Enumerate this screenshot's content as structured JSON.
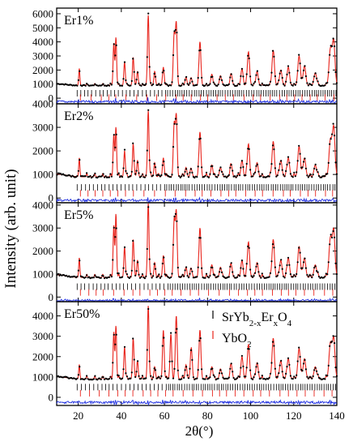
{
  "figure": {
    "ylabel": "Intensity (arb. unit)",
    "xlabel": "2θ(°)"
  },
  "legend": {
    "phase1_base": "SrYb",
    "phase1_sub1": "2-x",
    "phase1_mid": "Er",
    "phase1_sub2": "x",
    "phase1_o": "O",
    "phase1_sub3": "4",
    "phase2_base": "YbO",
    "phase2_sub": "2"
  },
  "colors": {
    "observed": "#000000",
    "calculated": "#e8241c",
    "difference": "#1f2fe0",
    "bragg_phase1": "#000000",
    "bragg_phase2": "#e8241c",
    "frame": "#000000"
  },
  "chart_data": [
    {
      "type": "line",
      "panel_label": "Er1%",
      "xlim": [
        10,
        140
      ],
      "ylim": [
        -400,
        6400
      ],
      "yticks": [
        0,
        1000,
        2000,
        3000,
        4000,
        5000,
        6000
      ],
      "xticks": [
        20,
        40,
        60,
        80,
        100,
        120,
        140
      ],
      "background": 900,
      "bragg_phase1_y": 350,
      "bragg_phase2_y": 40,
      "difference_offset": -250,
      "series": [
        {
          "role": "observed",
          "style": "dots"
        },
        {
          "role": "calculated",
          "style": "line"
        },
        {
          "role": "difference",
          "style": "line"
        }
      ],
      "peaks": [
        [
          20.5,
          2100
        ],
        [
          36.5,
          3900
        ],
        [
          37.5,
          4300
        ],
        [
          41.5,
          2600
        ],
        [
          45.5,
          2900
        ],
        [
          47.5,
          1900
        ],
        [
          52.5,
          5900
        ],
        [
          55.5,
          1900
        ],
        [
          59.5,
          2200
        ],
        [
          64.5,
          4400
        ],
        [
          65.5,
          5300
        ],
        [
          70,
          1500
        ],
        [
          72.5,
          1400
        ],
        [
          76.5,
          4000
        ],
        [
          82,
          1700
        ],
        [
          86,
          1600
        ],
        [
          91,
          1700
        ],
        [
          96,
          2100
        ],
        [
          99,
          3300
        ],
        [
          103,
          1900
        ],
        [
          110.5,
          3400
        ],
        [
          114,
          2000
        ],
        [
          117.5,
          2200
        ],
        [
          122.5,
          3000
        ],
        [
          125,
          2300
        ],
        [
          130,
          1800
        ],
        [
          137,
          3400
        ],
        [
          138.5,
          4000
        ]
      ]
    },
    {
      "type": "line",
      "panel_label": "Er2%",
      "xlim": [
        10,
        140
      ],
      "ylim": [
        -200,
        4000
      ],
      "yticks": [
        0,
        1000,
        2000,
        3000,
        4000
      ],
      "xticks": [
        20,
        40,
        60,
        80,
        100,
        120,
        140
      ],
      "background": 900,
      "bragg_phase1_y": 450,
      "bragg_phase2_y": 200,
      "difference_offset": -100,
      "series": [
        {
          "role": "observed",
          "style": "dots"
        },
        {
          "role": "calculated",
          "style": "line"
        },
        {
          "role": "difference",
          "style": "line"
        }
      ],
      "peaks": [
        [
          20.5,
          1700
        ],
        [
          36.5,
          2700
        ],
        [
          37.5,
          3000
        ],
        [
          41.5,
          2000
        ],
        [
          45.5,
          2300
        ],
        [
          47.5,
          1600
        ],
        [
          52.5,
          3700
        ],
        [
          55.5,
          1500
        ],
        [
          59.5,
          1700
        ],
        [
          64.5,
          3000
        ],
        [
          65.5,
          3500
        ],
        [
          70,
          1300
        ],
        [
          72.5,
          1200
        ],
        [
          76.5,
          2800
        ],
        [
          82,
          1400
        ],
        [
          86,
          1300
        ],
        [
          91,
          1400
        ],
        [
          96,
          1600
        ],
        [
          99,
          2300
        ],
        [
          103,
          1500
        ],
        [
          110.5,
          2400
        ],
        [
          114,
          1600
        ],
        [
          117.5,
          1700
        ],
        [
          122.5,
          2200
        ],
        [
          125,
          1700
        ],
        [
          130,
          1400
        ],
        [
          137,
          2400
        ],
        [
          138.5,
          2900
        ]
      ]
    },
    {
      "type": "line",
      "panel_label": "Er5%",
      "xlim": [
        10,
        140
      ],
      "ylim": [
        -200,
        4100
      ],
      "yticks": [
        0,
        1000,
        2000,
        3000,
        4000
      ],
      "xticks": [
        20,
        40,
        60,
        80,
        100,
        120,
        140
      ],
      "background": 850,
      "bragg_phase1_y": 450,
      "bragg_phase2_y": 200,
      "difference_offset": -150,
      "series": [
        {
          "role": "observed",
          "style": "dots"
        },
        {
          "role": "calculated",
          "style": "line"
        },
        {
          "role": "difference",
          "style": "line"
        }
      ],
      "peaks": [
        [
          20.5,
          1700
        ],
        [
          36.5,
          3100
        ],
        [
          37.5,
          3600
        ],
        [
          41.5,
          2200
        ],
        [
          45.5,
          2500
        ],
        [
          47.5,
          1600
        ],
        [
          52.5,
          4100
        ],
        [
          55.5,
          1500
        ],
        [
          59.5,
          1800
        ],
        [
          64.5,
          3200
        ],
        [
          65.5,
          3700
        ],
        [
          70,
          1300
        ],
        [
          72.5,
          1200
        ],
        [
          76.5,
          3000
        ],
        [
          82,
          1400
        ],
        [
          86,
          1300
        ],
        [
          91,
          1400
        ],
        [
          96,
          1600
        ],
        [
          99,
          2400
        ],
        [
          103,
          1500
        ],
        [
          110.5,
          2500
        ],
        [
          114,
          1600
        ],
        [
          117.5,
          1700
        ],
        [
          122.5,
          2200
        ],
        [
          125,
          1700
        ],
        [
          130,
          1400
        ],
        [
          137,
          2500
        ],
        [
          138.5,
          2800
        ]
      ]
    },
    {
      "type": "line",
      "panel_label": "Er50%",
      "xlim": [
        10,
        140
      ],
      "ylim": [
        -400,
        4700
      ],
      "yticks": [
        0,
        1000,
        2000,
        3000,
        4000
      ],
      "xticks": [
        20,
        40,
        60,
        80,
        100,
        120,
        140
      ],
      "background": 900,
      "bragg_phase1_y": 500,
      "bragg_phase2_y": 200,
      "difference_offset": -250,
      "series": [
        {
          "role": "observed",
          "style": "dots"
        },
        {
          "role": "calculated",
          "style": "line"
        },
        {
          "role": "difference",
          "style": "line"
        }
      ],
      "peaks": [
        [
          20.5,
          1600
        ],
        [
          36.5,
          3200
        ],
        [
          37.5,
          3500
        ],
        [
          41.5,
          2500
        ],
        [
          45.5,
          2900
        ],
        [
          47.5,
          1800
        ],
        [
          52.5,
          4500
        ],
        [
          55.5,
          1500
        ],
        [
          59.5,
          3300
        ],
        [
          63,
          3100
        ],
        [
          65.5,
          4000
        ],
        [
          70,
          1600
        ],
        [
          72.5,
          2400
        ],
        [
          76.5,
          3300
        ],
        [
          82,
          1500
        ],
        [
          86,
          1400
        ],
        [
          91,
          1600
        ],
        [
          96,
          2000
        ],
        [
          99,
          2600
        ],
        [
          103,
          1700
        ],
        [
          110.5,
          2900
        ],
        [
          114,
          1800
        ],
        [
          117.5,
          1900
        ],
        [
          122.5,
          2400
        ],
        [
          125,
          1900
        ],
        [
          130,
          1500
        ],
        [
          137,
          2600
        ],
        [
          138.5,
          2800
        ]
      ]
    }
  ]
}
